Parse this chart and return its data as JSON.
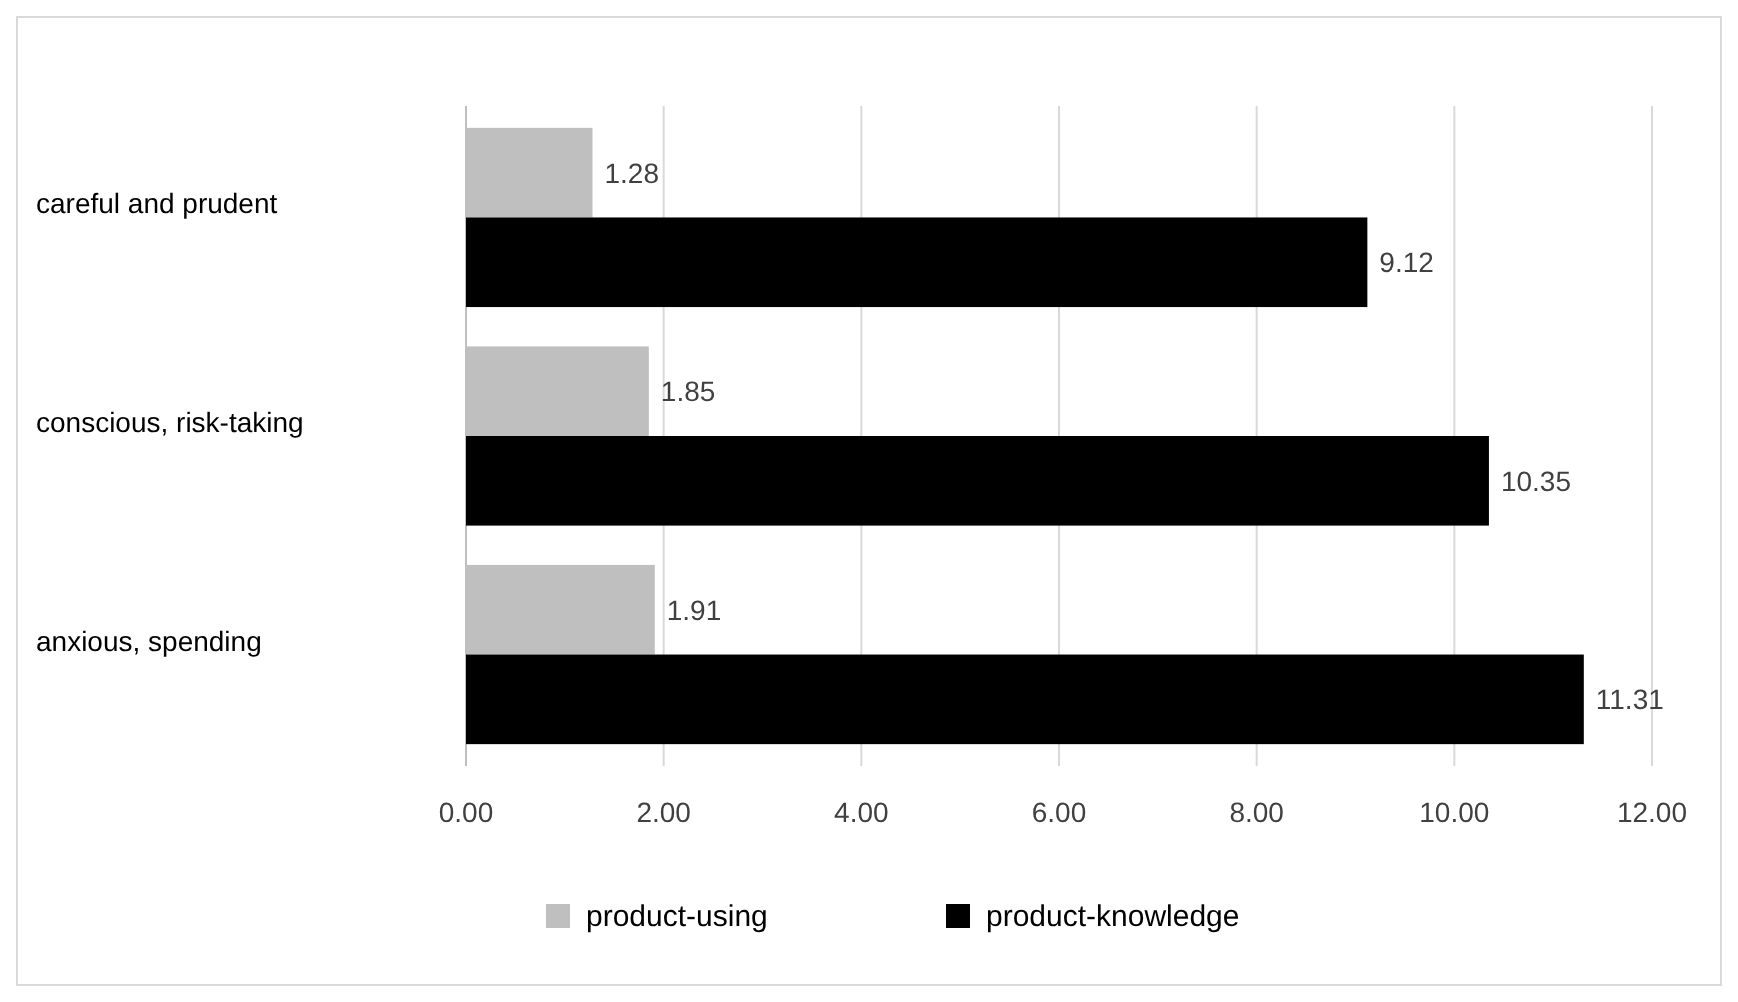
{
  "chart_data": {
    "type": "bar",
    "orientation": "horizontal",
    "categories": [
      "careful and prudent",
      "conscious, risk-taking",
      "anxious, spending"
    ],
    "series": [
      {
        "name": "product-using",
        "color": "#bfbfbf",
        "values": [
          1.28,
          1.85,
          1.91
        ]
      },
      {
        "name": "product-knowledge",
        "color": "#000000",
        "values": [
          9.12,
          10.35,
          11.31
        ]
      }
    ],
    "xlim": [
      0,
      12
    ],
    "xticks": [
      {
        "value": 0,
        "label": "0.00"
      },
      {
        "value": 2,
        "label": "2.00"
      },
      {
        "value": 4,
        "label": "4.00"
      },
      {
        "value": 6,
        "label": "6.00"
      },
      {
        "value": 8,
        "label": "8.00"
      },
      {
        "value": 10,
        "label": "10.00"
      },
      {
        "value": 12,
        "label": "12.00"
      }
    ],
    "grid": "x",
    "legend": "bottom",
    "data_labels": true
  }
}
